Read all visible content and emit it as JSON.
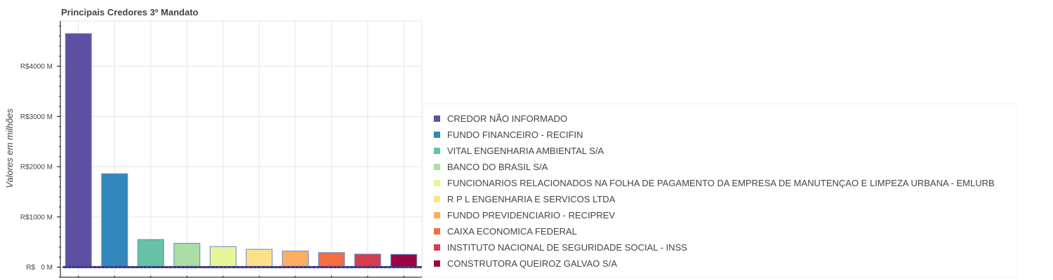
{
  "chart_data": {
    "type": "bar",
    "title": "Principais Credores 3º Mandato",
    "ylabel": "Valores em milhões",
    "xlabel": "",
    "ylim": [
      -200,
      4900
    ],
    "y_ticks": [
      0,
      1000,
      2000,
      3000,
      4000
    ],
    "y_tick_labels": [
      "R$   0 M",
      "R$1000 M",
      "R$2000 M",
      "R$3000 M",
      "R$4000 M"
    ],
    "grid": true,
    "legend_position": "right",
    "categories": [
      "CREDOR NÃO INFORMADO",
      "FUNDO FINANCEIRO - RECIFIN",
      "VITAL ENGENHARIA AMBIENTAL S/A",
      "BANCO DO BRASIL S/A",
      "FUNCIONARIOS RELACIONADOS NA FOLHA DE PAGAMENTO DA EMPRESA DE MANUTENÇAO E LIMPEZA URBANA - EMLURB",
      "R P L ENGENHARIA E SERVICOS LTDA",
      "FUNDO PREVIDENCIARIO - RECIPREV",
      "CAIXA ECONOMICA FEDERAL",
      "INSTITUTO NACIONAL DE SEGURIDADE SOCIAL - INSS",
      "CONSTRUTORA QUEIROZ GALVAO S/A"
    ],
    "values": [
      4650,
      1860,
      550,
      475,
      410,
      355,
      320,
      290,
      260,
      255
    ],
    "colors": [
      "#5e4fa2",
      "#3288bd",
      "#66c2a5",
      "#abdda4",
      "#e6f598",
      "#fee08b",
      "#fdae61",
      "#f46d43",
      "#d53e4f",
      "#9e0142"
    ],
    "bar_outline_color": "#5b8fc9",
    "baseline_line_color": "#1f3a93",
    "baseline_dot_color": "#c0392b"
  }
}
